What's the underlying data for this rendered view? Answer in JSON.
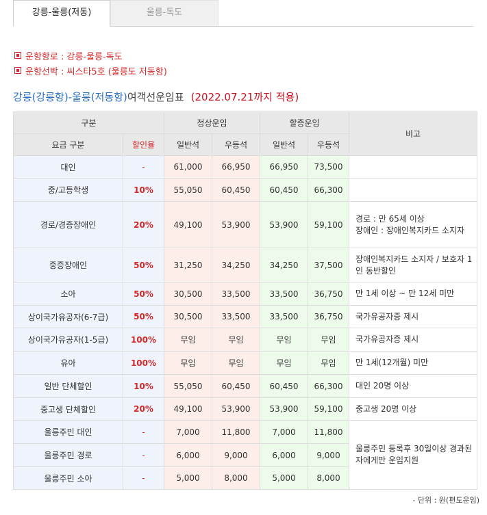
{
  "tabs": [
    "강릉-울릉(저동)",
    "울릉-독도"
  ],
  "info": [
    "운항항로 : 강릉-울릉-독도",
    "운항선박 : 씨스타5호 (울릉도 저동항)"
  ],
  "title": {
    "route": "강릉(강릉항)-울릉(저동항)",
    "suffix": "여객선운임표",
    "date": "(2022.07.21까지 적용)"
  },
  "header": {
    "gubun": "구분",
    "normal": "정상운임",
    "extra": "할증운임",
    "note": "비고",
    "fare_type": "요금 구분",
    "discount": "할인율",
    "general": "일반석",
    "premium": "우등석",
    "general2": "일반석",
    "premium2": "우등석"
  },
  "rows": [
    {
      "label": "대인",
      "rate": "-",
      "n_gen": "61,000",
      "n_pre": "66,950",
      "e_gen": "66,950",
      "e_pre": "73,500",
      "note": ""
    },
    {
      "label": "중/고등학생",
      "rate": "10%",
      "n_gen": "55,050",
      "n_pre": "60,450",
      "e_gen": "60,450",
      "e_pre": "66,300",
      "note": ""
    },
    {
      "label": "경로/경증장애인",
      "rate": "20%",
      "n_gen": "49,100",
      "n_pre": "53,900",
      "e_gen": "53,900",
      "e_pre": "59,100",
      "note": "경로 : 만 65세 이상\n장애인 : 장애인복지카드 소지자"
    },
    {
      "label": "중증장애인",
      "rate": "50%",
      "n_gen": "31,250",
      "n_pre": "34,250",
      "e_gen": "34,250",
      "e_pre": "37,500",
      "note": "장애인복지카드 소지자 / 보호자 1인 동반할인"
    },
    {
      "label": "소아",
      "rate": "50%",
      "n_gen": "30,500",
      "n_pre": "33,500",
      "e_gen": "33,500",
      "e_pre": "36,750",
      "note": "만 1세 이상 ~ 만 12세 미만"
    },
    {
      "label": "상이국가유공자(6-7급)",
      "rate": "50%",
      "n_gen": "30,500",
      "n_pre": "33,500",
      "e_gen": "33,500",
      "e_pre": "36,750",
      "note": "국가유공자증 제시"
    },
    {
      "label": "상이국가유공자(1-5급)",
      "rate": "100%",
      "n_gen": "무임",
      "n_pre": "무임",
      "e_gen": "무임",
      "e_pre": "무임",
      "note": "국가유공자증 제시"
    },
    {
      "label": "유아",
      "rate": "100%",
      "n_gen": "무임",
      "n_pre": "무임",
      "e_gen": "무임",
      "e_pre": "무임",
      "note": "만 1세(12개월) 미만"
    },
    {
      "label": "일반 단체할인",
      "rate": "10%",
      "n_gen": "55,050",
      "n_pre": "60,450",
      "e_gen": "60,450",
      "e_pre": "66,300",
      "note": "대인 20명 이상"
    },
    {
      "label": "중고생 단체할인",
      "rate": "20%",
      "n_gen": "49,100",
      "n_pre": "53,900",
      "e_gen": "53,900",
      "e_pre": "59,100",
      "note": "중고생 20명 이상"
    },
    {
      "label": "울릉주민 대인",
      "rate": "-",
      "n_gen": "7,000",
      "n_pre": "11,800",
      "e_gen": "7,000",
      "e_pre": "11,800",
      "note": "울릉주민 등록후 30일이상 경과된 자에게만 운임지원"
    },
    {
      "label": "울릉주민 경로",
      "rate": "-",
      "n_gen": "6,000",
      "n_pre": "9,000",
      "e_gen": "6,000",
      "e_pre": "9,000",
      "note": ""
    },
    {
      "label": "울릉주민 소아",
      "rate": "-",
      "n_gen": "5,000",
      "n_pre": "8,000",
      "e_gen": "5,000",
      "e_pre": "8,000",
      "note": ""
    }
  ],
  "footnote": "- 단위 : 원(편도운임)"
}
